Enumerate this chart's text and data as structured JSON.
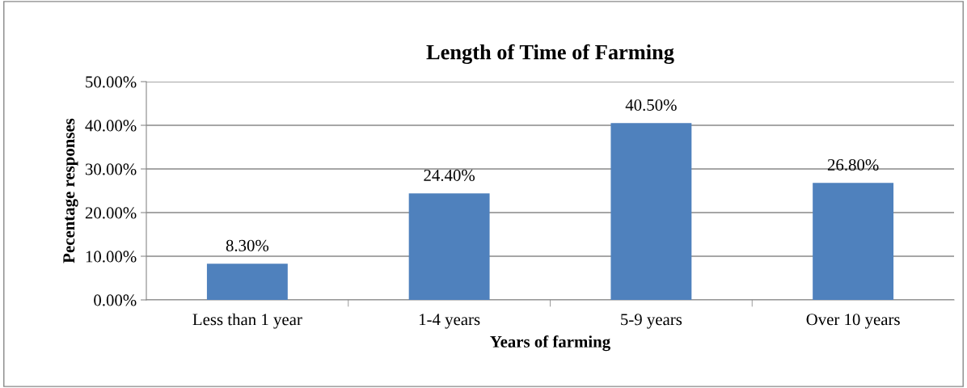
{
  "chart_data": {
    "type": "bar",
    "title": "Length of Time of Farming",
    "xlabel": "Years of farming",
    "ylabel": "Pecentage responses",
    "categories": [
      "Less than 1 year",
      "1-4 years",
      "5-9 years",
      "Over 10 years"
    ],
    "values": [
      8.3,
      24.4,
      40.5,
      26.8
    ],
    "color": "#4f81bd",
    "value_labels": [
      "8.30%",
      "24.40%",
      "40.50%",
      "26.80%"
    ],
    "ylim": [
      0,
      50
    ],
    "yticks": [
      {
        "value": 0,
        "label": "0.00%"
      },
      {
        "value": 10,
        "label": "10.00%"
      },
      {
        "value": 20,
        "label": "20.00%"
      },
      {
        "value": 30,
        "label": "30.00%"
      },
      {
        "value": 40,
        "label": "40.00%"
      },
      {
        "value": 50,
        "label": "50.00%"
      }
    ],
    "grid": "y",
    "legend": false
  }
}
